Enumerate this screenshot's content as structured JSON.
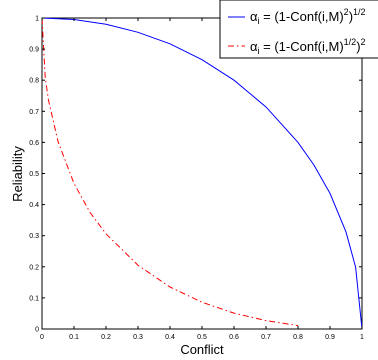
{
  "chart_data": {
    "type": "line",
    "xlabel": "Conflict",
    "ylabel": "Reliability",
    "xlim": [
      0,
      1
    ],
    "ylim": [
      0,
      1
    ],
    "x_ticks": [
      "0",
      "0.1",
      "0.2",
      "0.3",
      "0.4",
      "0.5",
      "0.6",
      "0.7",
      "0.8",
      "0.9",
      "1"
    ],
    "y_ticks": [
      "0",
      "0.1",
      "0.2",
      "0.3",
      "0.4",
      "0.5",
      "0.6",
      "0.7",
      "0.8",
      "0.9",
      "1"
    ],
    "grid": false,
    "legend_position": "top-right",
    "series": [
      {
        "name": "α_i = (1-Conf(i,M)^2)^1/2",
        "legend_main": "i",
        "legend_parts": [
          "α",
          "i",
          " = (1-Conf(i,M)",
          "2",
          ")",
          "1/2"
        ],
        "color": "#0000ff",
        "line_style": "solid",
        "x": [
          0,
          0.1,
          0.2,
          0.3,
          0.4,
          0.5,
          0.6,
          0.7,
          0.8,
          0.85,
          0.9,
          0.95,
          0.98,
          1
        ],
        "y": [
          1,
          0.995,
          0.98,
          0.954,
          0.917,
          0.866,
          0.8,
          0.714,
          0.6,
          0.527,
          0.436,
          0.312,
          0.199,
          0
        ]
      },
      {
        "name": "α_i = (1-Conf(i,M)^1/2)^2",
        "legend_parts": [
          "α",
          "i",
          " = (1-Conf(i,M)",
          "1/2",
          ")",
          "2"
        ],
        "color": "#ff0000",
        "line_style": "dash-dot",
        "x": [
          0,
          0.01,
          0.02,
          0.05,
          0.1,
          0.15,
          0.2,
          0.3,
          0.4,
          0.5,
          0.6,
          0.7,
          0.8
        ],
        "y": [
          1,
          0.81,
          0.737,
          0.603,
          0.468,
          0.375,
          0.306,
          0.205,
          0.135,
          0.086,
          0.051,
          0.027,
          0.011
        ]
      }
    ]
  }
}
